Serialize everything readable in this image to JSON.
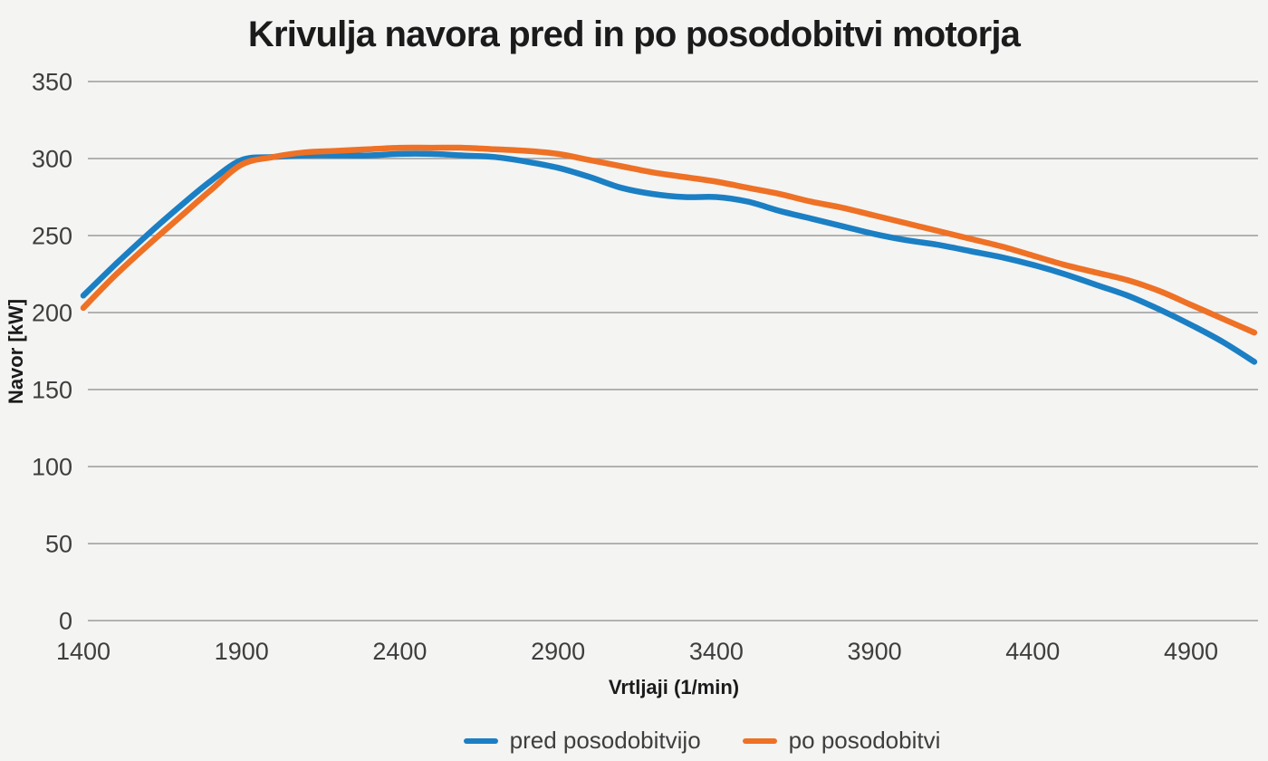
{
  "chart_data": {
    "type": "line",
    "title": "Krivulja navora pred in po posodobitvi motorja",
    "xlabel": "Vrtljaji (1/min)",
    "ylabel": "Navor [kW]",
    "x": [
      1400,
      1500,
      1600,
      1700,
      1800,
      1900,
      2000,
      2100,
      2200,
      2300,
      2400,
      2500,
      2600,
      2700,
      2800,
      2900,
      3000,
      3100,
      3200,
      3300,
      3400,
      3500,
      3600,
      3700,
      3800,
      3900,
      4000,
      4100,
      4200,
      4300,
      4400,
      4500,
      4600,
      4700,
      4800,
      4900,
      5000,
      5100
    ],
    "series": [
      {
        "name": "pred posodobitvijo",
        "color": "#1b7fc4",
        "values": [
          211,
          231,
          250,
          268,
          285,
          299,
          301,
          302,
          302,
          302,
          303,
          303,
          302,
          301,
          298,
          294,
          288,
          281,
          277,
          275,
          275,
          272,
          266,
          261,
          256,
          251,
          247,
          244,
          240,
          236,
          231,
          225,
          218,
          211,
          202,
          192,
          181,
          168
        ]
      },
      {
        "name": "po posodobitvi",
        "color": "#ee7125",
        "values": [
          203,
          224,
          243,
          261,
          279,
          296,
          301,
          304,
          305,
          306,
          307,
          307,
          307,
          306,
          305,
          303,
          299,
          295,
          291,
          288,
          285,
          281,
          277,
          272,
          268,
          263,
          258,
          253,
          248,
          243,
          237,
          231,
          226,
          221,
          214,
          205,
          196,
          187
        ]
      }
    ],
    "xticks": [
      1400,
      1900,
      2400,
      2900,
      3400,
      3900,
      4400,
      4900
    ],
    "yticks": [
      0,
      50,
      100,
      150,
      200,
      250,
      300,
      350
    ],
    "xlim": [
      1400,
      5100
    ],
    "ylim": [
      0,
      350
    ],
    "grid": "horizontal",
    "legend_position": "bottom"
  },
  "colors": {
    "background": "#f4f4f3",
    "grid": "#9c9c9c",
    "title_text": "#1b1b1b",
    "tick_text": "#3e3e3e",
    "series_blue": "#1b7fc4",
    "series_orange": "#ee7125"
  }
}
